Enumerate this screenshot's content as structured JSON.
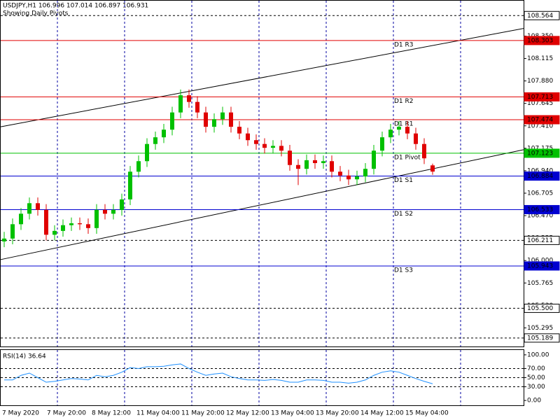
{
  "chart_data": [
    {
      "type": "candlestick",
      "title": "USDJPY,H1  106.996 107.014 106.897 106.931",
      "subtitle": "Showing Daily Pivots",
      "up_color": "#00c000",
      "down_color": "#e00000",
      "candles": [
        [
          106.2,
          106.3,
          106.14,
          106.23
        ],
        [
          106.23,
          106.44,
          106.17,
          106.38
        ],
        [
          106.38,
          106.55,
          106.32,
          106.49
        ],
        [
          106.49,
          106.66,
          106.43,
          106.6
        ],
        [
          106.6,
          106.66,
          106.47,
          106.53
        ],
        [
          106.53,
          106.59,
          106.21,
          106.27
        ],
        [
          106.27,
          106.37,
          106.21,
          106.31
        ],
        [
          106.31,
          106.43,
          106.25,
          106.37
        ],
        [
          106.37,
          106.45,
          106.31,
          106.39
        ],
        [
          106.39,
          106.45,
          106.32,
          106.38
        ],
        [
          106.38,
          106.44,
          106.28,
          106.34
        ],
        [
          106.34,
          106.59,
          106.28,
          106.53
        ],
        [
          106.53,
          106.59,
          106.43,
          106.49
        ],
        [
          106.49,
          106.59,
          106.43,
          106.53
        ],
        [
          106.53,
          106.7,
          106.47,
          106.64
        ],
        [
          106.64,
          106.99,
          106.58,
          106.93
        ],
        [
          106.93,
          107.1,
          106.87,
          107.04
        ],
        [
          107.04,
          107.28,
          106.98,
          107.22
        ],
        [
          107.22,
          107.35,
          107.16,
          107.29
        ],
        [
          107.29,
          107.43,
          107.23,
          107.37
        ],
        [
          107.37,
          107.61,
          107.31,
          107.55
        ],
        [
          107.55,
          107.79,
          107.49,
          107.73
        ],
        [
          107.73,
          107.79,
          107.6,
          107.66
        ],
        [
          107.66,
          107.72,
          107.49,
          107.55
        ],
        [
          107.55,
          107.61,
          107.34,
          107.4
        ],
        [
          107.4,
          107.54,
          107.34,
          107.48
        ],
        [
          107.48,
          107.61,
          107.42,
          107.55
        ],
        [
          107.55,
          107.61,
          107.34,
          107.4
        ],
        [
          107.4,
          107.46,
          107.27,
          107.33
        ],
        [
          107.33,
          107.39,
          107.2,
          107.26
        ],
        [
          107.26,
          107.32,
          107.16,
          107.22
        ],
        [
          107.22,
          107.28,
          107.12,
          107.18
        ],
        [
          107.18,
          107.26,
          107.12,
          107.2
        ],
        [
          107.2,
          107.26,
          107.09,
          107.15
        ],
        [
          107.15,
          107.21,
          106.94,
          107.0
        ],
        [
          107.0,
          107.06,
          106.79,
          106.96
        ],
        [
          106.96,
          107.11,
          106.9,
          107.05
        ],
        [
          107.05,
          107.11,
          106.96,
          107.02
        ],
        [
          107.02,
          107.1,
          106.96,
          107.04
        ],
        [
          107.04,
          107.1,
          106.87,
          106.93
        ],
        [
          106.93,
          106.99,
          106.83,
          106.89
        ],
        [
          106.89,
          106.95,
          106.79,
          106.85
        ],
        [
          106.85,
          106.94,
          106.79,
          106.88
        ],
        [
          106.88,
          107.02,
          106.82,
          106.96
        ],
        [
          106.96,
          107.21,
          106.9,
          107.15
        ],
        [
          107.15,
          107.35,
          107.09,
          107.29
        ],
        [
          107.29,
          107.43,
          107.23,
          107.37
        ],
        [
          107.37,
          107.46,
          107.31,
          107.4
        ],
        [
          107.4,
          107.46,
          107.27,
          107.33
        ],
        [
          107.33,
          107.39,
          107.16,
          107.22
        ],
        [
          107.22,
          107.28,
          107.01,
          107.07
        ],
        [
          106.996,
          107.014,
          106.897,
          106.931
        ]
      ],
      "ylim": [
        105.1,
        108.72
      ],
      "yticks": [
        {
          "value": 108.35,
          "label": "108.350"
        },
        108.115,
        {
          "value": 107.88,
          "label": "107.880"
        },
        107.645,
        {
          "value": 107.41,
          "label": "107.410"
        },
        107.175,
        {
          "value": 106.94,
          "label": "106.940"
        },
        106.705,
        {
          "value": 106.47,
          "label": "106.470"
        },
        106.235,
        {
          "value": 106.0,
          "label": "106.000"
        },
        105.765,
        {
          "value": 105.53,
          "label": "105.530"
        },
        105.295
      ],
      "x_labels": [
        "7 May 2020",
        "7 May 20:00",
        "8 May 12:00",
        "11 May 04:00",
        "11 May 20:00",
        "12 May 12:00",
        "13 May 04:00",
        "13 May 20:00",
        "14 May 12:00",
        "15 May 04:00"
      ],
      "levels": [
        {
          "value": 108.564,
          "label": "108.564",
          "color": "#000000",
          "dashed": true
        },
        {
          "value": 108.303,
          "label": "108.303",
          "name": "D1 R3",
          "color": "#e00000"
        },
        {
          "value": 107.713,
          "label": "107.713",
          "name": "D1 R2",
          "color": "#e00000"
        },
        {
          "value": 107.474,
          "label": "107.474",
          "name": "D1 R1",
          "color": "#e00000"
        },
        {
          "value": 107.123,
          "label": "107.123",
          "name": "D1 Pivot",
          "color": "#00c000"
        },
        {
          "value": 106.884,
          "label": "106.884",
          "name": "D1 S1",
          "color": "#0000d0"
        },
        {
          "value": 106.533,
          "label": "106.533",
          "name": "D1 S2",
          "color": "#0000d0"
        },
        {
          "value": 106.211,
          "label": "106.211",
          "color": "#000000",
          "dashed": true
        },
        {
          "value": 105.943,
          "label": "105.943",
          "name": "D1 S3",
          "color": "#0000d0"
        },
        {
          "value": 105.5,
          "label": "105.500",
          "color": "#000000",
          "dashed": true
        },
        {
          "value": 105.189,
          "label": "105.189",
          "color": "#000000",
          "dashed": true
        }
      ],
      "trend_lines": [
        [
          107.4,
          108.43
        ],
        [
          106.01,
          107.16
        ]
      ]
    },
    {
      "type": "line",
      "title": "RSI(14) 36.64",
      "color": "#1e90ff",
      "values": [
        45,
        45,
        55,
        60,
        50,
        40,
        42,
        45,
        48,
        47,
        45,
        55,
        52,
        55,
        62,
        72,
        70,
        74,
        74,
        75,
        78,
        80,
        70,
        62,
        55,
        58,
        60,
        52,
        48,
        45,
        45,
        44,
        46,
        44,
        40,
        40,
        45,
        45,
        44,
        40,
        40,
        38,
        40,
        45,
        55,
        62,
        65,
        62,
        55,
        48,
        42,
        36.64
      ],
      "ylim": [
        -10.6,
        110.6
      ],
      "yticks": [
        {
          "value": 100,
          "label": "100.00"
        },
        {
          "value": 70,
          "label": "70.00"
        },
        {
          "value": 50,
          "label": "50.00"
        },
        {
          "value": 30,
          "label": "30.00"
        },
        {
          "value": 0,
          "label": "0.00"
        }
      ],
      "levels": [
        70,
        50,
        30
      ]
    }
  ]
}
